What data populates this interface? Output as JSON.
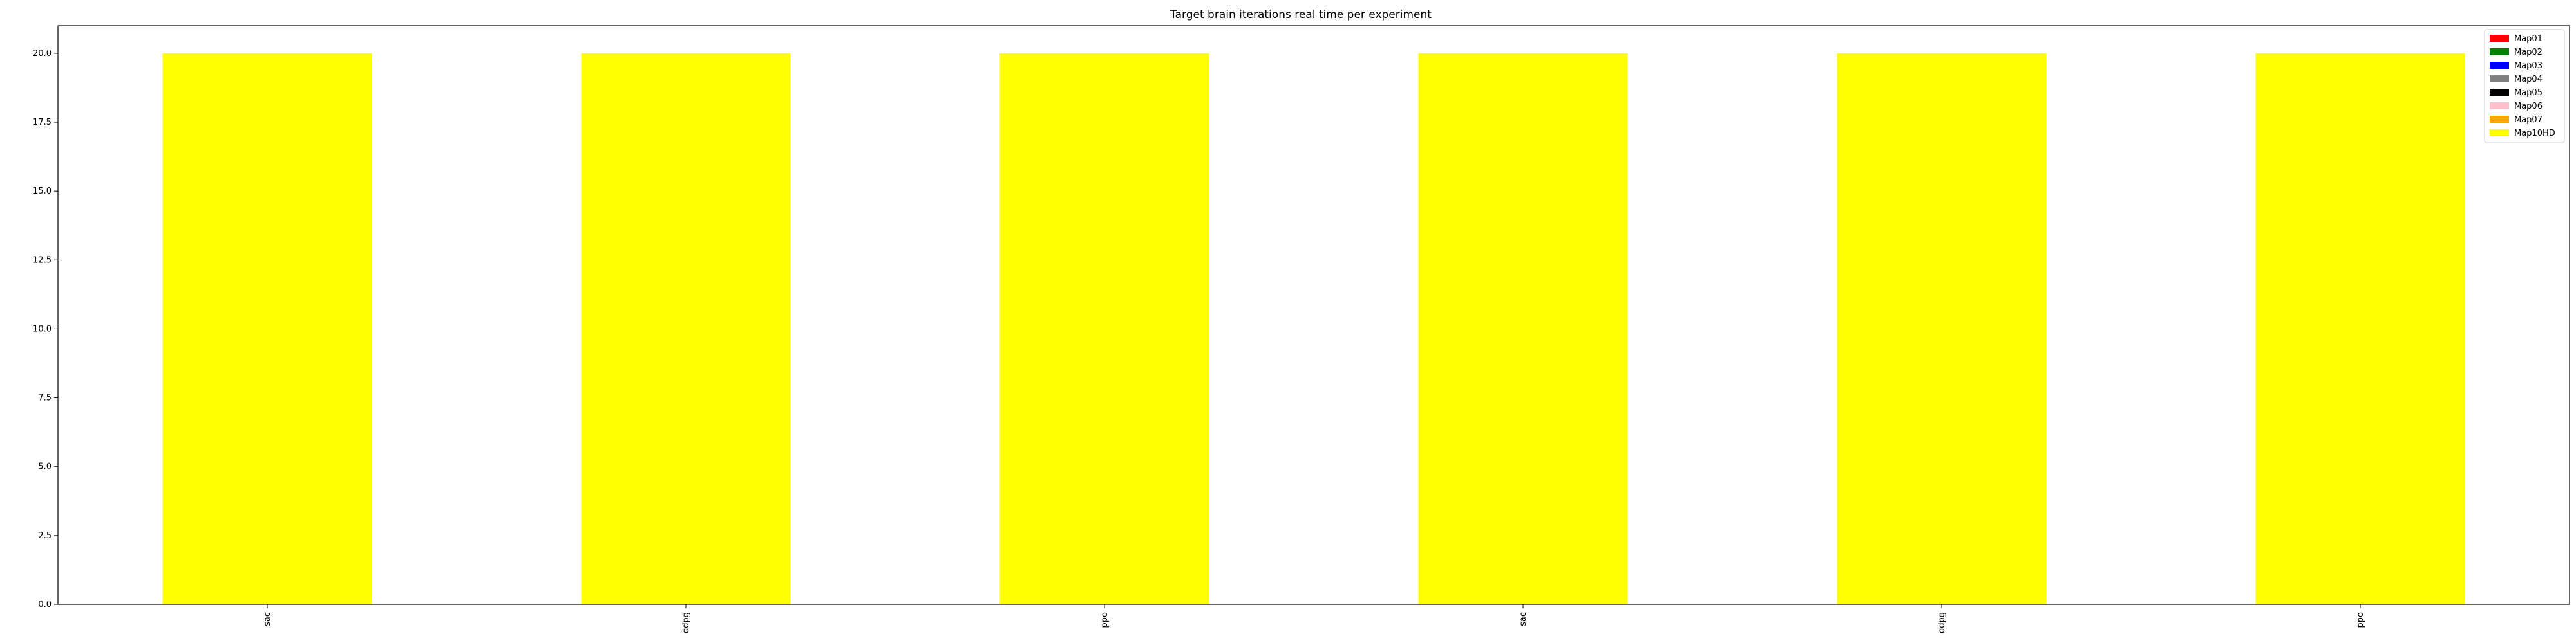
{
  "chart_data": {
    "type": "bar",
    "stacked": true,
    "title": "Target brain iterations real time per experiment",
    "xlabel": "",
    "ylabel": "",
    "categories": [
      "sac",
      "ddpg",
      "ppo",
      "sac",
      "ddpg",
      "ppo"
    ],
    "ylim": [
      0,
      21
    ],
    "yticks": [
      0.0,
      2.5,
      5.0,
      7.5,
      10.0,
      12.5,
      15.0,
      17.5,
      20.0
    ],
    "ytick_labels": [
      "0.0",
      "2.5",
      "5.0",
      "7.5",
      "10.0",
      "12.5",
      "15.0",
      "17.5",
      "20.0"
    ],
    "grid": false,
    "legend_position": "top-right",
    "series": [
      {
        "name": "Map01",
        "color": "#ff0000",
        "values": [
          0,
          0,
          0,
          0,
          0,
          0
        ]
      },
      {
        "name": "Map02",
        "color": "#008000",
        "values": [
          0,
          0,
          0,
          0,
          0,
          0
        ]
      },
      {
        "name": "Map03",
        "color": "#0000ff",
        "values": [
          0,
          0,
          0,
          0,
          0,
          0
        ]
      },
      {
        "name": "Map04",
        "color": "#808080",
        "values": [
          0,
          0,
          0,
          0,
          0,
          0
        ]
      },
      {
        "name": "Map05",
        "color": "#000000",
        "values": [
          0,
          0,
          0,
          0,
          0,
          0
        ]
      },
      {
        "name": "Map06",
        "color": "#ffc0cb",
        "values": [
          0,
          0,
          0,
          0,
          0,
          0
        ]
      },
      {
        "name": "Map07",
        "color": "#ffa500",
        "values": [
          0,
          0,
          0,
          0,
          0,
          0
        ]
      },
      {
        "name": "Map10HD",
        "color": "#ffff00",
        "values": [
          20,
          20,
          20,
          20,
          20,
          20
        ]
      }
    ]
  }
}
